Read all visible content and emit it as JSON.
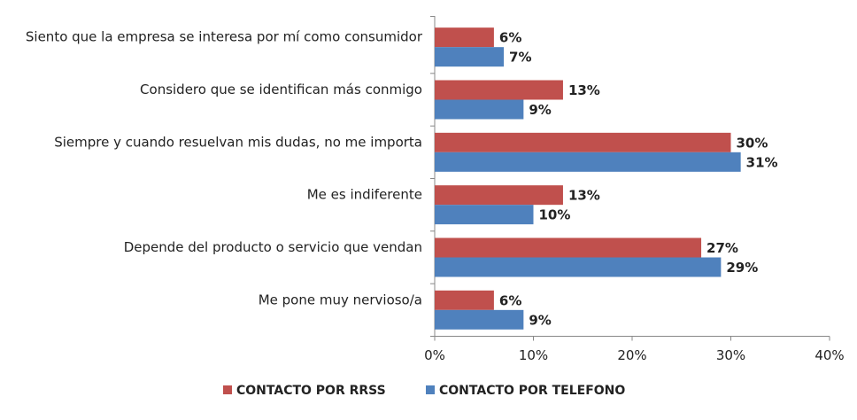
{
  "chart_data": {
    "type": "barh",
    "categories": [
      "Siento que la empresa se interesa por mí como consumidor",
      "Considero que se identifican más conmigo",
      "Siempre y cuando resuelvan mis dudas, no me importa",
      "Me es indiferente",
      "Depende del producto o servicio que vendan",
      "Me pone muy nervioso/a"
    ],
    "series": [
      {
        "name": "CONTACTO POR RRSS",
        "color": "#c0504d",
        "values": [
          6,
          13,
          30,
          13,
          27,
          6
        ],
        "value_labels": [
          "6%",
          "13%",
          "30%",
          "13%",
          "27%",
          "6%"
        ]
      },
      {
        "name": "CONTACTO POR TELEFONO",
        "color": "#4f81bd",
        "values": [
          7,
          9,
          31,
          10,
          29,
          9
        ],
        "value_labels": [
          "7%",
          "9%",
          "31%",
          "10%",
          "29%",
          "9%"
        ]
      }
    ],
    "xlim": [
      0,
      40
    ],
    "xticks": [
      {
        "value": 0,
        "label": "0%"
      },
      {
        "value": 10,
        "label": "10%"
      },
      {
        "value": 20,
        "label": "20%"
      },
      {
        "value": 30,
        "label": "30%"
      },
      {
        "value": 40,
        "label": "40%"
      }
    ],
    "legend": "bottom"
  }
}
